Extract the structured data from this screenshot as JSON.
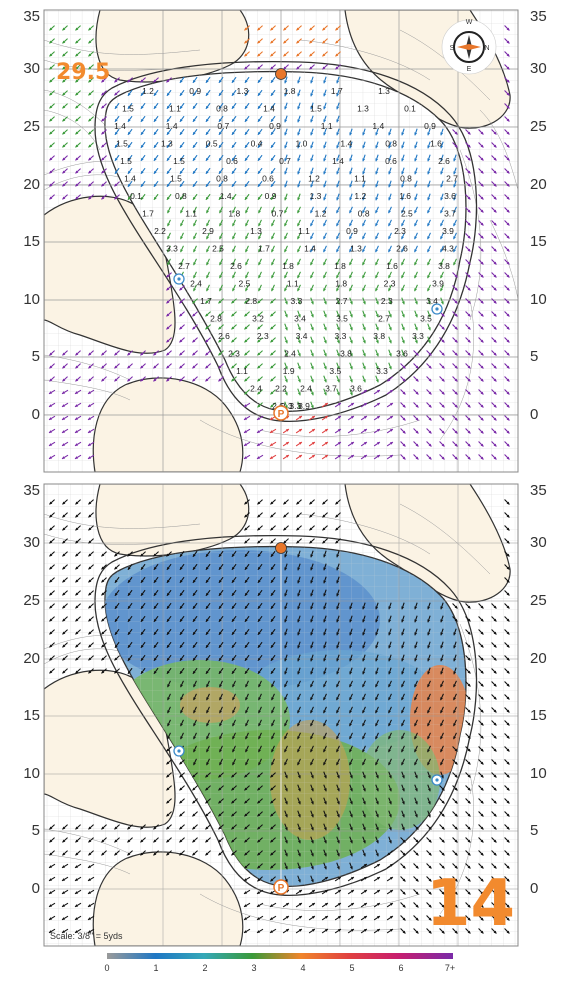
{
  "hole_number": "14",
  "elevation_label": "29.5",
  "scale_label": "Scale: 3/8\" = 5yds",
  "y_axis_labels": [
    "35",
    "30",
    "25",
    "20",
    "15",
    "10",
    "5",
    "0"
  ],
  "compass": {
    "n": "N",
    "s": "S",
    "e": "E",
    "w": "W"
  },
  "colorbar": {
    "ticks": [
      "0",
      "1",
      "2",
      "3",
      "4",
      "5",
      "6",
      "7+"
    ],
    "colors": [
      "#8a8a8a",
      "#1f77c4",
      "#2fa8c8",
      "#3a9a3a",
      "#f0852a",
      "#e04040",
      "#c81e6e",
      "#7a2aa8"
    ]
  },
  "slope_values": [
    [
      "1.2",
      "0.9",
      "1.3",
      "1.8",
      "1.7",
      "1.3"
    ],
    [
      "1.5",
      "1.1",
      "0.8",
      "1.4",
      "1.5",
      "1.3",
      "0.1"
    ],
    [
      "1.4",
      "1.4",
      "0.7",
      "0.9",
      "1.1",
      "1.4",
      "0.9"
    ],
    [
      "1.5",
      "1.3",
      "0.5",
      "0.4",
      "1.0",
      "1.4",
      "0.8",
      "1.6"
    ],
    [
      "1.5",
      "1.5",
      "0.6",
      "0.7",
      "1.4",
      "0.6",
      "2.6"
    ],
    [
      "1.4",
      "1.5",
      "0.8",
      "0.6",
      "1.2",
      "1.1",
      "0.8",
      "2.7"
    ],
    [
      "0.1",
      "0.8",
      "1.4",
      "0.9",
      "1.3",
      "1.2",
      "1.6",
      "3.6"
    ],
    [
      "1.7",
      "1.1",
      "1.8",
      "0.7",
      "1.2",
      "0.8",
      "2.5",
      "3.7"
    ],
    [
      "2.2",
      "2.9",
      "1.3",
      "1.1",
      "0.9",
      "2.3",
      "3.9"
    ],
    [
      "3.3",
      "2.5",
      "1.7",
      "1.4",
      "1.3",
      "2.6",
      "4.3"
    ],
    [
      "2.7",
      "2.6",
      "1.8",
      "1.8",
      "1.6",
      "3.8"
    ],
    [
      "2.4",
      "2.5",
      "1.1",
      "1.8",
      "2.3",
      "3.9"
    ],
    [
      "1.7",
      "2.8",
      "3.3",
      "2.7",
      "2.3",
      "3.4"
    ],
    [
      "2.8",
      "3.2",
      "3.4",
      "3.5",
      "2.7",
      "3.5"
    ],
    [
      "2.6",
      "2.3",
      "3.4",
      "3.3",
      "3.8",
      "3.3"
    ],
    [
      "2.3",
      "2.4",
      "3.8",
      "3.6"
    ],
    [
      "1.1",
      "1.9",
      "3.5",
      "3.3"
    ],
    [
      "2.4",
      "2.2",
      "2.4",
      "3.7",
      "3.6"
    ],
    [
      "2.6",
      "2.3",
      "3.3",
      "3.9"
    ],
    [
      "2.8",
      "2.6",
      "3.3"
    ]
  ]
}
